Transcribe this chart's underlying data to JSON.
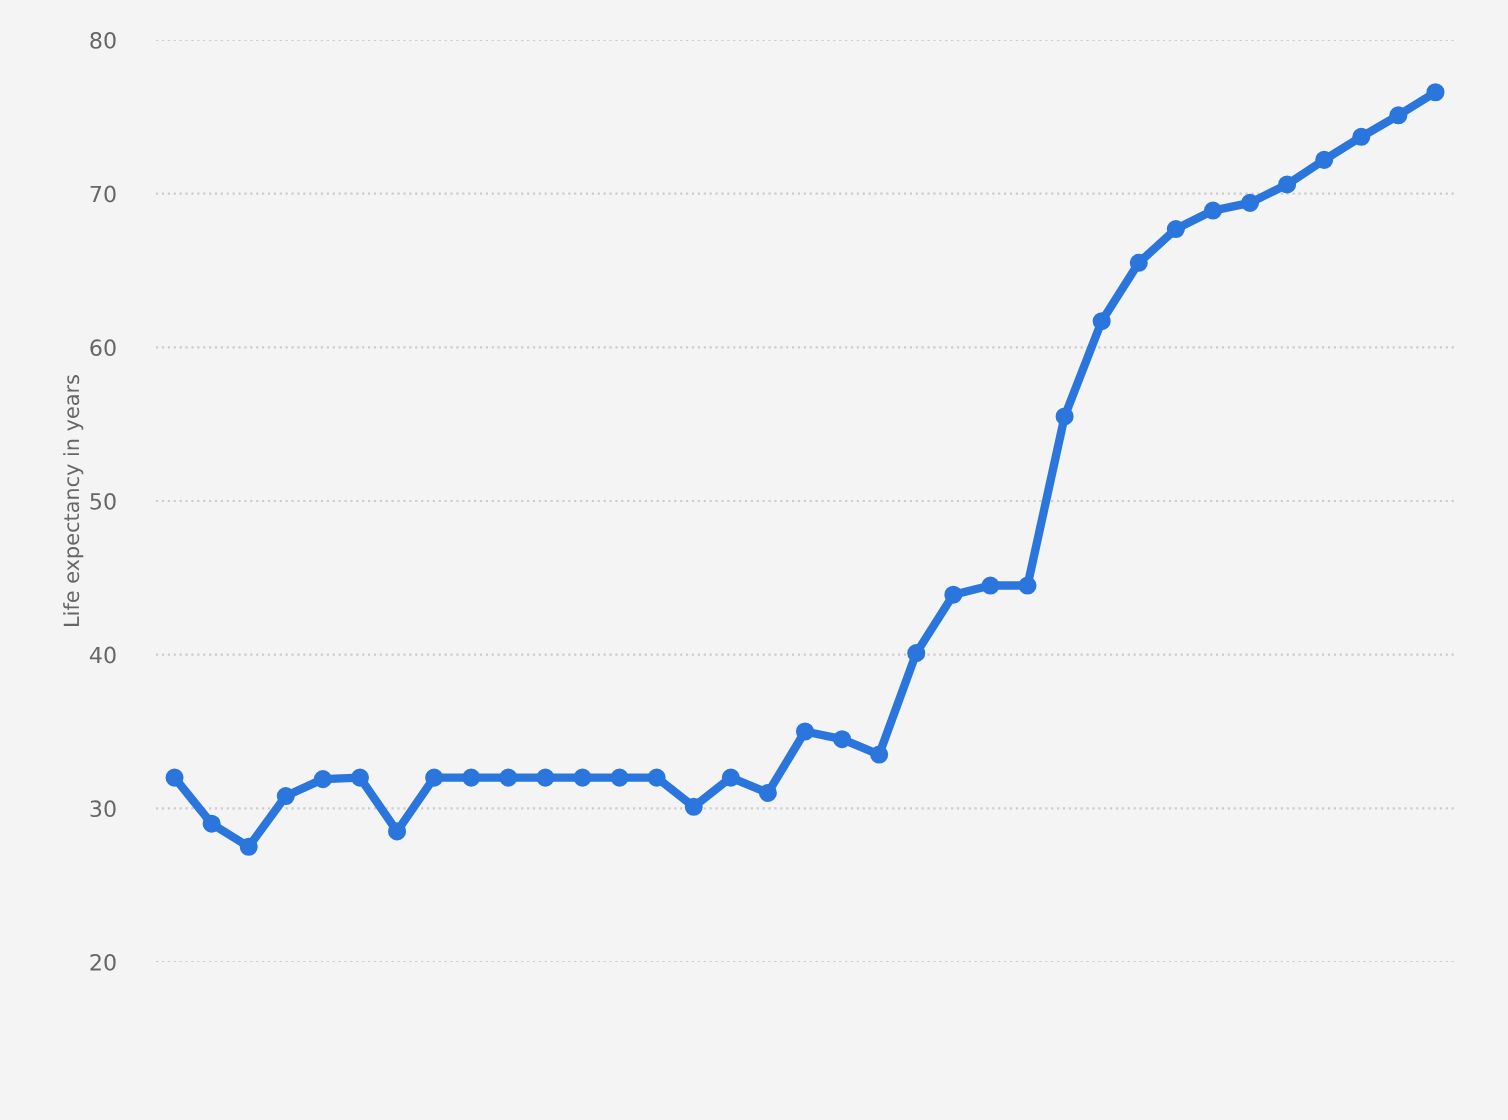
{
  "chart_data": {
    "type": "line",
    "ylabel": "Life expectancy in years",
    "categories": [
      null,
      null,
      null,
      null,
      null,
      null,
      null,
      null,
      null,
      null,
      null,
      null,
      null,
      null,
      null,
      null,
      null,
      null,
      null,
      null,
      null,
      null,
      null,
      null,
      null,
      null,
      null,
      null,
      null,
      null,
      null,
      null,
      null,
      null,
      null
    ],
    "series": [
      {
        "color": "#2a76dd",
        "values": [
          32.0,
          29.0,
          27.5,
          30.8,
          31.9,
          32.0,
          28.5,
          32.0,
          32.0,
          32.0,
          32.0,
          32.0,
          32.0,
          32.0,
          30.1,
          32.0,
          31.0,
          35.0,
          34.5,
          33.5,
          40.1,
          43.9,
          44.5,
          44.5,
          55.5,
          61.7,
          65.5,
          67.7,
          68.9,
          69.4,
          70.6,
          72.2,
          73.7,
          75.1,
          76.6
        ]
      }
    ],
    "ylim": [
      20,
      80
    ],
    "yticks": [
      20,
      30,
      40,
      50,
      60,
      70,
      80
    ],
    "grid": "y",
    "marker": "circle",
    "line_style": "solid",
    "legend": false
  }
}
